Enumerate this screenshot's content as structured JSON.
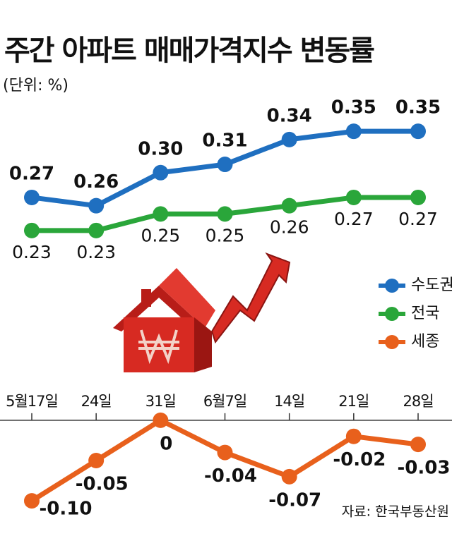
{
  "chart_data": {
    "type": "line",
    "title": "주간 아파트 매매가격지수 변동률",
    "subtitle": "(단위: %)",
    "source": "자료: 한국부동산원",
    "categories": [
      "5월17일",
      "24일",
      "31일",
      "6월7일",
      "14일",
      "21일",
      "28일"
    ],
    "series": [
      {
        "name": "수도권",
        "color": "#1f6fc0",
        "values": [
          0.27,
          0.26,
          0.3,
          0.31,
          0.34,
          0.35,
          0.35
        ],
        "value_labels": [
          "0.27",
          "0.26",
          "0.30",
          "0.31",
          "0.34",
          "0.35",
          "0.35"
        ]
      },
      {
        "name": "전국",
        "color": "#2aa63a",
        "values": [
          0.23,
          0.23,
          0.25,
          0.25,
          0.26,
          0.27,
          0.27
        ],
        "value_labels": [
          "0.23",
          "0.23",
          "0.25",
          "0.25",
          "0.26",
          "0.27",
          "0.27"
        ]
      },
      {
        "name": "세종",
        "color": "#e8601c",
        "axis": "y2",
        "values": [
          -0.1,
          -0.05,
          0,
          -0.04,
          -0.07,
          -0.02,
          -0.03
        ],
        "value_labels": [
          "-0.10",
          "-0.05",
          "0",
          "-0.04",
          "-0.07",
          "-0.02",
          "-0.03"
        ]
      }
    ],
    "ylim": [
      0.2,
      0.38
    ],
    "y2lim": [
      -0.12,
      0.02
    ]
  }
}
